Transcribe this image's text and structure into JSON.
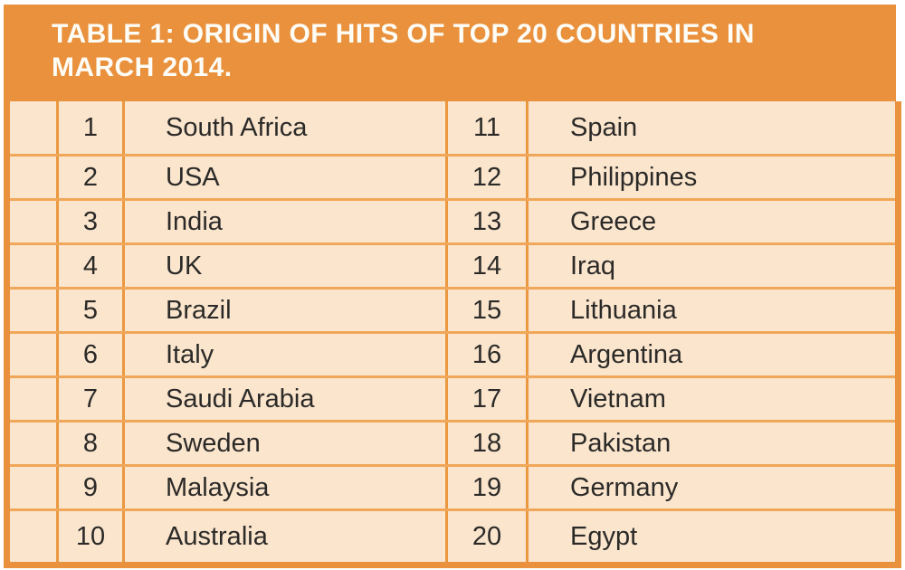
{
  "figure": {
    "title": {
      "line1": "TABLE 1: ORIGIN OF HITS OF TOP 20 COUNTRIES IN",
      "line2": "MARCH 2014."
    },
    "colors": {
      "header_background": "#E9913C",
      "cell_background": "#FBE5CD",
      "outer_border": "#E9913C",
      "grid_line_vertical": "#EB9840",
      "grid_line_horizontal": "#F1A759",
      "title_text": "#FFFDF8",
      "cell_text": "#2B2A28"
    },
    "table": {
      "rows": [
        {
          "left": {
            "rank": "1",
            "country": "South Africa"
          },
          "right": {
            "rank": "11",
            "country": "Spain"
          }
        },
        {
          "left": {
            "rank": "2",
            "country": "USA"
          },
          "right": {
            "rank": "12",
            "country": "Philippines"
          }
        },
        {
          "left": {
            "rank": "3",
            "country": "India"
          },
          "right": {
            "rank": "13",
            "country": "Greece"
          }
        },
        {
          "left": {
            "rank": "4",
            "country": "UK"
          },
          "right": {
            "rank": "14",
            "country": "Iraq"
          }
        },
        {
          "left": {
            "rank": "5",
            "country": "Brazil"
          },
          "right": {
            "rank": "15",
            "country": "Lithuania"
          }
        },
        {
          "left": {
            "rank": "6",
            "country": "Italy"
          },
          "right": {
            "rank": "16",
            "country": "Argentina"
          }
        },
        {
          "left": {
            "rank": "7",
            "country": "Saudi Arabia"
          },
          "right": {
            "rank": "17",
            "country": "Vietnam"
          }
        },
        {
          "left": {
            "rank": "8",
            "country": "Sweden"
          },
          "right": {
            "rank": "18",
            "country": "Pakistan"
          }
        },
        {
          "left": {
            "rank": "9",
            "country": "Malaysia"
          },
          "right": {
            "rank": "19",
            "country": "Germany"
          }
        },
        {
          "left": {
            "rank": "10",
            "country": "Australia"
          },
          "right": {
            "rank": "20",
            "country": "Egypt"
          }
        }
      ]
    }
  }
}
